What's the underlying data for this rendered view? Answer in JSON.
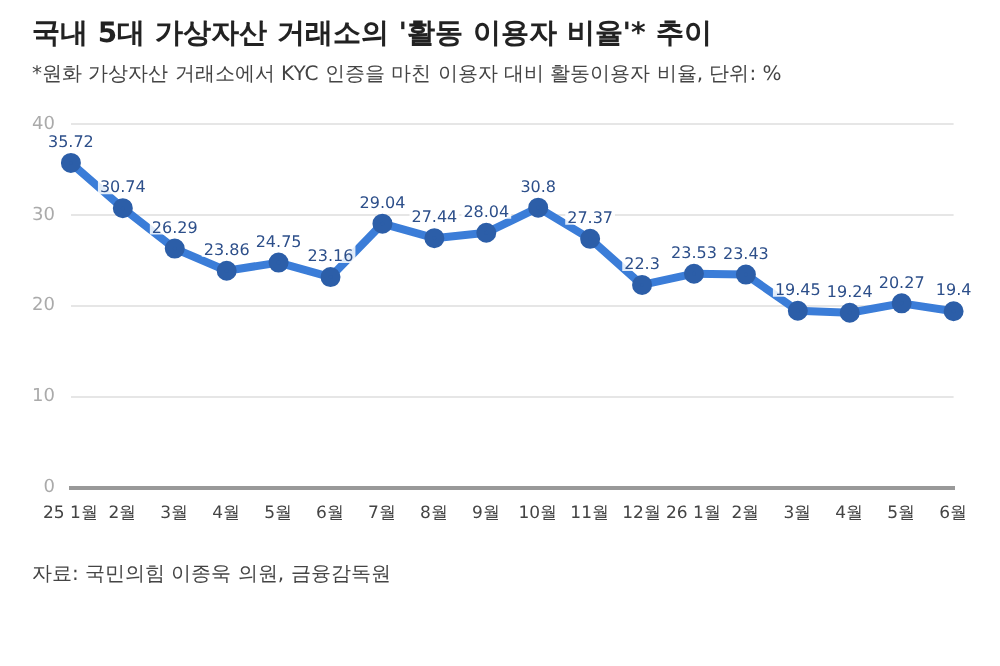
{
  "chart_data": {
    "type": "line",
    "title": "국내 5대 가상자산 거래소의 '활동 이용자 비율'* 추이",
    "subtitle": "*원화 가상자산 거래소에서 KYC 인증을 마친 이용자 대비 활동이용자 비율, 단위: %",
    "annotations": [
      "자료: 국민의힘 이종욱 의원, 금융감독원"
    ],
    "categories": [
      "25 1월",
      "2월",
      "3월",
      "4월",
      "5월",
      "6월",
      "7월",
      "8월",
      "9월",
      "10월",
      "11월",
      "12월",
      "26 1월",
      "2월",
      "3월",
      "4월",
      "5월",
      "6월"
    ],
    "series": [
      {
        "color": "#3b7dd8",
        "values": [
          35.72,
          30.74,
          26.29,
          23.86,
          24.75,
          23.16,
          29.04,
          27.44,
          28.04,
          30.8,
          27.37,
          22.3,
          23.53,
          23.43,
          19.45,
          19.24,
          20.27,
          19.4
        ]
      }
    ],
    "ylim": [
      0,
      40
    ],
    "yticks": [
      0,
      10,
      20,
      30,
      40
    ],
    "grid": "y",
    "marker": "circle",
    "line_style": "solid",
    "data_labels": true,
    "legend": false
  }
}
